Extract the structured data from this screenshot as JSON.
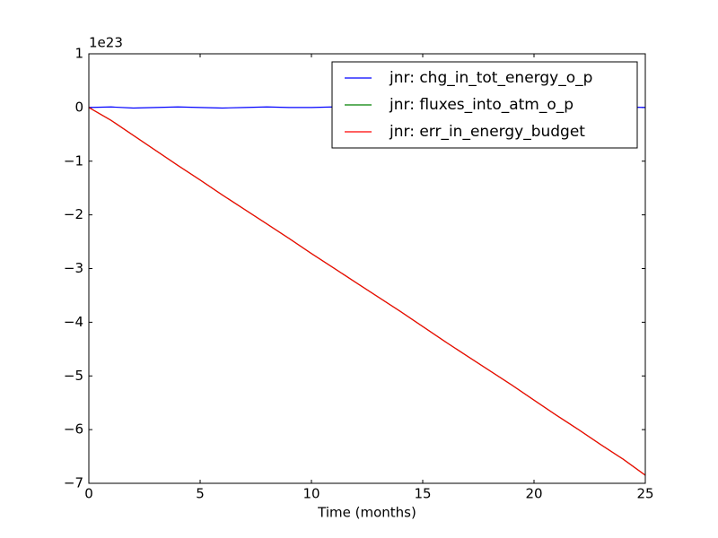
{
  "chart_data": {
    "type": "line",
    "xlabel": "Time (months)",
    "y_offset_label": "1e23",
    "x": [
      0,
      1,
      2,
      3,
      4,
      5,
      6,
      7,
      8,
      9,
      10,
      11,
      12,
      13,
      14,
      15,
      16,
      17,
      18,
      19,
      20,
      21,
      22,
      23,
      24,
      25
    ],
    "series": [
      {
        "name": "jnr: chg_in_tot_energy_o_p",
        "color": "#0000ff",
        "values": [
          0,
          0.01,
          -0.01,
          0,
          0.01,
          0,
          -0.01,
          0,
          0.01,
          0,
          0,
          0.01,
          -0.01,
          0,
          0,
          0.01,
          0,
          -0.01,
          0,
          0.01,
          0,
          0,
          -0.01,
          0,
          0.01,
          0
        ]
      },
      {
        "name": "jnr: fluxes_into_atm_o_p",
        "color": "#008000",
        "values": [
          0,
          -0.24,
          -0.52,
          -0.8,
          -1.08,
          -1.35,
          -1.63,
          -1.9,
          -2.17,
          -2.44,
          -2.72,
          -2.99,
          -3.26,
          -3.53,
          -3.8,
          -4.08,
          -4.36,
          -4.63,
          -4.9,
          -5.17,
          -5.45,
          -5.73,
          -6.0,
          -6.28,
          -6.55,
          -6.85
        ]
      },
      {
        "name": "jnr: err_in_energy_budget",
        "color": "#ff0000",
        "values": [
          0,
          -0.24,
          -0.52,
          -0.8,
          -1.08,
          -1.35,
          -1.63,
          -1.9,
          -2.17,
          -2.44,
          -2.72,
          -2.99,
          -3.26,
          -3.53,
          -3.8,
          -4.08,
          -4.36,
          -4.63,
          -4.9,
          -5.17,
          -5.45,
          -5.73,
          -6.0,
          -6.28,
          -6.55,
          -6.85
        ]
      }
    ],
    "xlim": [
      0,
      25
    ],
    "xticks": [
      0,
      5,
      10,
      15,
      20,
      25
    ],
    "ylim": [
      -7,
      1
    ],
    "yticks": [
      {
        "value": -7,
        "label": "−7"
      },
      {
        "value": -6,
        "label": "−6"
      },
      {
        "value": -5,
        "label": "−5"
      },
      {
        "value": -4,
        "label": "−4"
      },
      {
        "value": -3,
        "label": "−3"
      },
      {
        "value": -2,
        "label": "−2"
      },
      {
        "value": -1,
        "label": "−1"
      },
      0,
      1
    ],
    "legend": "upper right"
  }
}
